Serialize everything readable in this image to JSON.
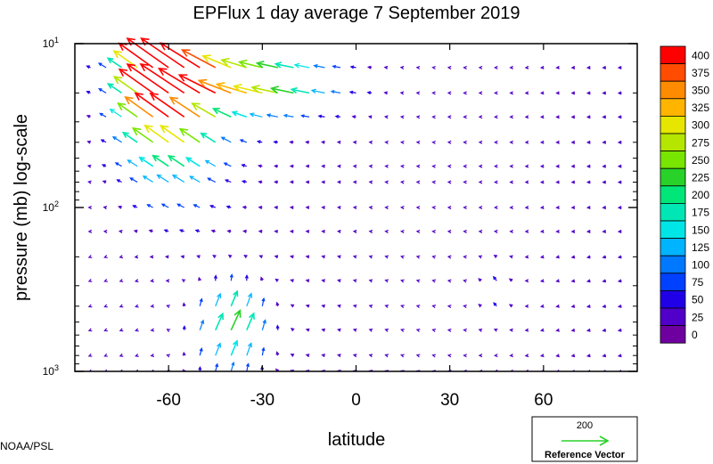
{
  "chart_data": {
    "type": "quiver",
    "title": "EPFlux  1 day average  7 September 2019",
    "xlabel": "latitude",
    "ylabel": "pressure (mb)  log-scale",
    "xlim": [
      -90,
      90
    ],
    "ylim": [
      1000,
      10
    ],
    "y_scale": "log",
    "x_ticks": [
      -60,
      -30,
      0,
      30,
      60
    ],
    "x_tick_labels": [
      "-60",
      "-30",
      "0",
      "30",
      "60"
    ],
    "y_ticks": [
      {
        "base": "10",
        "exp": "1",
        "value": 10
      },
      {
        "base": "10",
        "exp": "2",
        "value": 100
      },
      {
        "base": "10",
        "exp": "3",
        "value": 1000
      }
    ],
    "colorbar": {
      "labels": [
        "400",
        "375",
        "350",
        "325",
        "300",
        "275",
        "250",
        "225",
        "200",
        "175",
        "150",
        "125",
        "100",
        "75",
        "50",
        "25",
        "0"
      ],
      "colors": [
        "#ff0000",
        "#ff4c00",
        "#ff8c00",
        "#ffb400",
        "#e6e600",
        "#b4e600",
        "#78e600",
        "#28d228",
        "#00e678",
        "#00e6b4",
        "#00e6e6",
        "#00b4ff",
        "#0078ff",
        "#0040ff",
        "#2000e6",
        "#5000c8",
        "#6e00a0"
      ]
    },
    "reference_vector": {
      "magnitude": "200",
      "label": "Reference Vector",
      "color": "#28d228"
    },
    "credit": "NOAA/PSL",
    "vector_rows_pressure_mb": [
      14,
      20,
      28,
      40,
      56,
      70,
      100,
      140,
      200,
      280,
      400,
      560,
      800,
      1000
    ],
    "vector_cols_latitude_deg": [
      -85,
      -80,
      -75,
      -70,
      -65,
      -60,
      -55,
      -50,
      -45,
      -40,
      -35,
      -30,
      -25,
      -20,
      -15,
      -10,
      -5,
      0,
      5,
      10,
      15,
      20,
      25,
      30,
      35,
      40,
      45,
      50,
      55,
      60,
      65,
      70,
      75,
      80,
      85
    ]
  }
}
